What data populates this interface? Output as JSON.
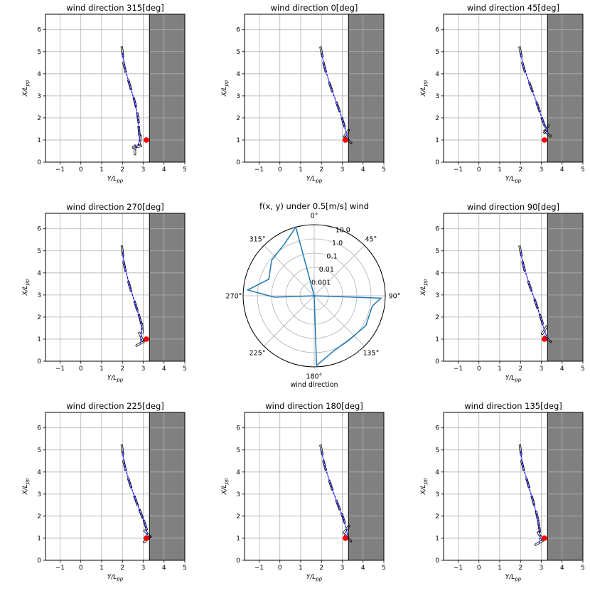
{
  "colors": {
    "wall": "#808080",
    "path": "#0000ff",
    "hull": "#000000",
    "target": "#ff0000",
    "polar_line": "#1f77b4",
    "grid": "#b0b0b0"
  },
  "chart_data": {
    "type": "multi-panel",
    "panels": [
      {
        "type": "line",
        "title": "wind direction 315[deg]",
        "xlabel": "Y/L",
        "ylabel": "X/L",
        "label_subscript": "pp",
        "xlim": [
          -1.7,
          5
        ],
        "ylim": [
          0,
          6.7
        ],
        "xticks": [
          -1,
          0,
          1,
          2,
          3,
          4,
          5
        ],
        "yticks": [
          0,
          1,
          2,
          3,
          4,
          5,
          6
        ],
        "wall_from_y": 3.3,
        "target": {
          "y": 3.15,
          "x": 1.0
        },
        "trajectory": [
          [
            2.0,
            5.0
          ],
          [
            2.1,
            4.3
          ],
          [
            2.35,
            3.5
          ],
          [
            2.6,
            2.7
          ],
          [
            2.75,
            2.0
          ],
          [
            2.8,
            1.4
          ],
          [
            2.85,
            1.0
          ],
          [
            2.7,
            0.7
          ],
          [
            2.6,
            0.55
          ]
        ]
      },
      {
        "type": "line",
        "title": "wind direction 0[deg]",
        "xlabel": "Y/L",
        "ylabel": "X/L",
        "label_subscript": "pp",
        "xlim": [
          -1.7,
          5
        ],
        "ylim": [
          0,
          6.7
        ],
        "xticks": [
          -1,
          0,
          1,
          2,
          3,
          4,
          5
        ],
        "yticks": [
          0,
          1,
          2,
          3,
          4,
          5,
          6
        ],
        "wall_from_y": 3.3,
        "target": {
          "y": 3.15,
          "x": 1.0
        },
        "trajectory": [
          [
            2.0,
            5.0
          ],
          [
            2.15,
            4.3
          ],
          [
            2.45,
            3.4
          ],
          [
            2.8,
            2.5
          ],
          [
            3.05,
            1.8
          ],
          [
            3.2,
            1.3
          ],
          [
            3.28,
            1.0
          ]
        ]
      },
      {
        "type": "line",
        "title": "wind direction 45[deg]",
        "xlabel": "Y/L",
        "ylabel": "X/L",
        "label_subscript": "pp",
        "xlim": [
          -1.7,
          5
        ],
        "ylim": [
          0,
          6.7
        ],
        "xticks": [
          -1,
          0,
          1,
          2,
          3,
          4,
          5
        ],
        "yticks": [
          0,
          1,
          2,
          3,
          4,
          5,
          6
        ],
        "wall_from_y": 3.3,
        "target": {
          "y": 3.15,
          "x": 1.0
        },
        "trajectory": [
          [
            2.0,
            5.0
          ],
          [
            2.15,
            4.3
          ],
          [
            2.5,
            3.4
          ],
          [
            2.85,
            2.5
          ],
          [
            3.1,
            1.8
          ],
          [
            3.25,
            1.5
          ],
          [
            3.3,
            1.3
          ]
        ]
      },
      {
        "type": "line",
        "title": "wind direction 270[deg]",
        "xlabel": "Y/L",
        "ylabel": "X/L",
        "label_subscript": "pp",
        "xlim": [
          -1.7,
          5
        ],
        "ylim": [
          0,
          6.7
        ],
        "xticks": [
          -1,
          0,
          1,
          2,
          3,
          4,
          5
        ],
        "yticks": [
          0,
          1,
          2,
          3,
          4,
          5,
          6
        ],
        "wall_from_y": 3.3,
        "target": {
          "y": 3.15,
          "x": 1.0
        },
        "trajectory": [
          [
            2.0,
            5.0
          ],
          [
            2.1,
            4.3
          ],
          [
            2.35,
            3.4
          ],
          [
            2.65,
            2.5
          ],
          [
            2.85,
            1.9
          ],
          [
            2.95,
            1.5
          ],
          [
            2.9,
            1.1
          ],
          [
            2.85,
            0.8
          ]
        ]
      },
      {
        "type": "polar",
        "title": "f(x, y) under 0.5[m/s] wind",
        "theta_label": "wind direction",
        "theta_ticks": [
          "0°",
          "45°",
          "90°",
          "135°",
          "180°",
          "225°",
          "270°",
          "315°"
        ],
        "r_tick_labels": [
          "0.001",
          "0.01",
          "0.1",
          "1.0",
          "10.0"
        ],
        "r_scale": "log",
        "r_lim_log10": [
          -4,
          1
        ],
        "theta_deg": [
          0,
          15,
          30,
          45,
          60,
          75,
          85,
          92,
          100,
          120,
          140,
          160,
          178,
          200,
          225,
          250,
          268,
          275,
          290,
          310,
          330,
          345,
          355
        ],
        "r_log10": [
          -99,
          -99,
          -99,
          -99,
          -99,
          -99,
          -99,
          0.7,
          0.15,
          0.2,
          -0.05,
          0.1,
          0.9,
          -99,
          -99,
          -99,
          -1.2,
          0.7,
          -0.6,
          -0.1,
          0.2,
          1.0,
          -99
        ]
      },
      {
        "type": "line",
        "title": "wind direction 90[deg]",
        "xlabel": "Y/L",
        "ylabel": "X/L",
        "label_subscript": "pp",
        "xlim": [
          -1.7,
          5
        ],
        "ylim": [
          0,
          6.7
        ],
        "xticks": [
          -1,
          0,
          1,
          2,
          3,
          4,
          5
        ],
        "yticks": [
          0,
          1,
          2,
          3,
          4,
          5,
          6
        ],
        "wall_from_y": 3.3,
        "target": {
          "y": 3.15,
          "x": 1.0
        },
        "trajectory": [
          [
            2.0,
            5.0
          ],
          [
            2.15,
            4.3
          ],
          [
            2.45,
            3.4
          ],
          [
            2.75,
            2.6
          ],
          [
            3.0,
            1.9
          ],
          [
            3.15,
            1.4
          ],
          [
            3.3,
            1.0
          ]
        ]
      },
      {
        "type": "line",
        "title": "wind direction 225[deg]",
        "xlabel": "Y/L",
        "ylabel": "X/L",
        "label_subscript": "pp",
        "xlim": [
          -1.7,
          5
        ],
        "ylim": [
          0,
          6.7
        ],
        "xticks": [
          -1,
          0,
          1,
          2,
          3,
          4,
          5
        ],
        "yticks": [
          0,
          1,
          2,
          3,
          4,
          5,
          6
        ],
        "wall_from_y": 3.3,
        "target": {
          "y": 3.15,
          "x": 1.0
        },
        "trajectory": [
          [
            2.0,
            5.0
          ],
          [
            2.1,
            4.3
          ],
          [
            2.35,
            3.5
          ],
          [
            2.65,
            2.7
          ],
          [
            2.9,
            2.1
          ],
          [
            3.1,
            1.6
          ],
          [
            3.2,
            1.2
          ],
          [
            3.2,
            0.95
          ]
        ]
      },
      {
        "type": "line",
        "title": "wind direction 180[deg]",
        "xlabel": "Y/L",
        "ylabel": "X/L",
        "label_subscript": "pp",
        "xlim": [
          -1.7,
          5
        ],
        "ylim": [
          0,
          6.7
        ],
        "xticks": [
          -1,
          0,
          1,
          2,
          3,
          4,
          5
        ],
        "yticks": [
          0,
          1,
          2,
          3,
          4,
          5,
          6
        ],
        "wall_from_y": 3.3,
        "target": {
          "y": 3.15,
          "x": 1.0
        },
        "trajectory": [
          [
            2.0,
            5.0
          ],
          [
            2.15,
            4.3
          ],
          [
            2.45,
            3.4
          ],
          [
            2.8,
            2.5
          ],
          [
            3.05,
            1.9
          ],
          [
            3.2,
            1.4
          ],
          [
            3.28,
            1.0
          ]
        ]
      },
      {
        "type": "line",
        "title": "wind direction 135[deg]",
        "xlabel": "Y/L",
        "ylabel": "X/L",
        "label_subscript": "pp",
        "xlim": [
          -1.7,
          5
        ],
        "ylim": [
          0,
          6.7
        ],
        "xticks": [
          -1,
          0,
          1,
          2,
          3,
          4,
          5
        ],
        "yticks": [
          0,
          1,
          2,
          3,
          4,
          5,
          6
        ],
        "wall_from_y": 3.3,
        "target": {
          "y": 3.15,
          "x": 1.0
        },
        "trajectory": [
          [
            2.0,
            5.0
          ],
          [
            2.1,
            4.3
          ],
          [
            2.35,
            3.5
          ],
          [
            2.6,
            2.7
          ],
          [
            2.8,
            2.0
          ],
          [
            2.9,
            1.5
          ],
          [
            2.95,
            1.1
          ],
          [
            2.9,
            0.8
          ]
        ]
      }
    ]
  }
}
